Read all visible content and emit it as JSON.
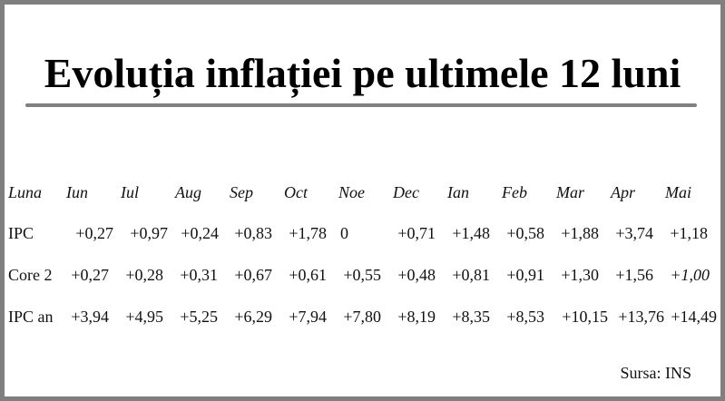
{
  "title": "Evoluția inflației pe ultimele 12 luni",
  "table": {
    "header_label": "Luna",
    "months": [
      "Iun",
      "Iul",
      "Aug",
      "Sep",
      "Oct",
      "Noe",
      "Dec",
      "Ian",
      "Feb",
      "Mar",
      "Apr",
      "Mai"
    ],
    "rows": [
      {
        "label": "IPC",
        "values": [
          "+0,27",
          "+0,97",
          "+0,24",
          "+0,83",
          "+1,78",
          "0",
          "+0,71",
          "+1,48",
          "+0,58",
          "+1,88",
          "+3,74",
          "+1,18"
        ],
        "italic_index": -1
      },
      {
        "label": "Core 2",
        "values": [
          "+0,27",
          "+0,28",
          "+0,31",
          "+0,67",
          "+0,61",
          "+0,55",
          "+0,48",
          "+0,81",
          "+0,91",
          "+1,30",
          "+1,56",
          "+1,00"
        ],
        "italic_index": 11
      },
      {
        "label": "IPC an",
        "values": [
          "+3,94",
          "+4,95",
          "+5,25",
          "+6,29",
          "+7,94",
          "+7,80",
          "+8,19",
          "+8,35",
          "+8,53",
          "+10,15",
          "+13,76",
          "+14,49"
        ],
        "italic_index": -1
      }
    ]
  },
  "source": "Sursa: INS"
}
